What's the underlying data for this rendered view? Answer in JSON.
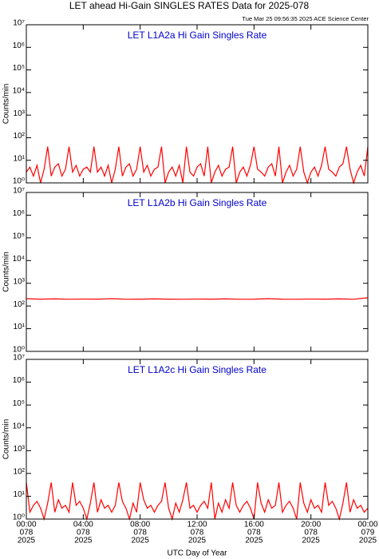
{
  "title": "LET ahead Hi-Gain SINGLES RATES Data for 2025-078",
  "subtitle": "Tue Mar 25 09:56:35 2025 ACE Science Center",
  "chart_data": [
    {
      "type": "line",
      "title": "LET L1A2a Hi Gain Singles Rate",
      "y_label": "Counts/min",
      "log_y": true,
      "color": "#ff0000",
      "xlim": [
        0,
        24
      ],
      "ylim": [
        1,
        10000000
      ],
      "yticks": [
        {
          "value": 1,
          "label": "10⁰"
        },
        {
          "value": 10,
          "label": "10¹"
        },
        {
          "value": 100,
          "label": "10²"
        },
        {
          "value": 1000,
          "label": "10³"
        },
        {
          "value": 10000,
          "label": "10⁴"
        },
        {
          "value": 100000,
          "label": "10⁵"
        },
        {
          "value": 1000000,
          "label": "10⁶"
        },
        {
          "value": 10000000,
          "label": "10⁷"
        }
      ],
      "x": [
        0,
        0.25,
        0.5,
        0.75,
        1,
        1.25,
        1.5,
        1.75,
        2,
        2.25,
        2.5,
        2.75,
        3,
        3.25,
        3.5,
        3.75,
        4,
        4.25,
        4.5,
        4.75,
        5,
        5.25,
        5.5,
        5.75,
        6,
        6.25,
        6.5,
        6.75,
        7,
        7.25,
        7.5,
        7.75,
        8,
        8.25,
        8.5,
        8.75,
        9,
        9.25,
        9.5,
        9.75,
        10,
        10.25,
        10.5,
        10.75,
        11,
        11.25,
        11.5,
        11.75,
        12,
        12.25,
        12.5,
        12.75,
        13,
        13.25,
        13.5,
        13.75,
        14,
        14.25,
        14.5,
        14.75,
        15,
        15.25,
        15.5,
        15.75,
        16,
        16.25,
        16.5,
        16.75,
        17,
        17.25,
        17.5,
        17.75,
        18,
        18.25,
        18.5,
        18.75,
        19,
        19.25,
        19.5,
        19.75,
        20,
        20.25,
        20.5,
        20.75,
        21,
        21.25,
        21.5,
        21.75,
        22,
        22.25,
        22.5,
        22.75,
        23,
        23.25,
        23.5,
        23.75,
        24
      ],
      "values": [
        3,
        5,
        2,
        6,
        1,
        4,
        40,
        2,
        5,
        7,
        2,
        4,
        40,
        3,
        6,
        2,
        4,
        5,
        3,
        40,
        3,
        5,
        2,
        6,
        1,
        4,
        40,
        2,
        5,
        7,
        2,
        4,
        40,
        3,
        6,
        2,
        4,
        5,
        40,
        1,
        3,
        5,
        2,
        6,
        1,
        40,
        3,
        2,
        5,
        7,
        2,
        40,
        1,
        3,
        6,
        2,
        4,
        5,
        40,
        1,
        3,
        5,
        2,
        6,
        40,
        4,
        3,
        2,
        5,
        7,
        2,
        40,
        1,
        3,
        6,
        2,
        4,
        40,
        3,
        1,
        3,
        5,
        2,
        6,
        40,
        4,
        3,
        2,
        5,
        7,
        40,
        4,
        1,
        3,
        6,
        2,
        40
      ]
    },
    {
      "type": "line",
      "title": "LET L1A2b Hi Gain Singles Rate",
      "y_label": "Counts/min",
      "log_y": true,
      "color": "#ff0000",
      "xlim": [
        0,
        24
      ],
      "ylim": [
        1,
        10000000
      ],
      "yticks": [
        {
          "value": 1,
          "label": "10⁰"
        },
        {
          "value": 10,
          "label": "10¹"
        },
        {
          "value": 100,
          "label": "10²"
        },
        {
          "value": 1000,
          "label": "10³"
        },
        {
          "value": 10000,
          "label": "10⁴"
        },
        {
          "value": 100000,
          "label": "10⁵"
        },
        {
          "value": 1000000,
          "label": "10⁶"
        },
        {
          "value": 10000000,
          "label": "10⁷"
        }
      ],
      "x": [
        0,
        1,
        2,
        3,
        4,
        5,
        6,
        7,
        8,
        9,
        10,
        11,
        12,
        13,
        14,
        15,
        16,
        17,
        18,
        19,
        20,
        21,
        22,
        23,
        24
      ],
      "values": [
        210,
        200,
        205,
        198,
        202,
        200,
        210,
        198,
        200,
        205,
        200,
        198,
        202,
        200,
        205,
        198,
        200,
        210,
        200,
        198,
        202,
        200,
        205,
        198,
        230
      ]
    },
    {
      "type": "line",
      "title": "LET L1A2c Hi Gain Singles Rate",
      "y_label": "Counts/min",
      "x_label": "UTC Day of Year",
      "log_y": true,
      "color": "#ff0000",
      "xlim": [
        0,
        24
      ],
      "ylim": [
        1,
        10000000
      ],
      "yticks": [
        {
          "value": 1,
          "label": "10⁰"
        },
        {
          "value": 10,
          "label": "10¹"
        },
        {
          "value": 100,
          "label": "10²"
        },
        {
          "value": 1000,
          "label": "10³"
        },
        {
          "value": 10000,
          "label": "10⁴"
        },
        {
          "value": 100000,
          "label": "10⁵"
        },
        {
          "value": 1000000,
          "label": "10⁶"
        },
        {
          "value": 10000000,
          "label": "10⁷"
        }
      ],
      "xticks": [
        {
          "value": 0,
          "label": [
            "00:00",
            "078",
            "2025"
          ]
        },
        {
          "value": 4,
          "label": [
            "04:00",
            "078",
            "2025"
          ]
        },
        {
          "value": 8,
          "label": [
            "08:00",
            "078",
            "2025"
          ]
        },
        {
          "value": 12,
          "label": [
            "12:00",
            "078",
            "2025"
          ]
        },
        {
          "value": 16,
          "label": [
            "16:00",
            "078",
            "2025"
          ]
        },
        {
          "value": 20,
          "label": [
            "20:00",
            "078",
            "2025"
          ]
        },
        {
          "value": 24,
          "label": [
            "00:00",
            "079",
            "2025"
          ]
        }
      ],
      "x": [
        0,
        0.25,
        0.5,
        0.75,
        1,
        1.25,
        1.5,
        1.75,
        2,
        2.25,
        2.5,
        2.75,
        3,
        3.25,
        3.5,
        3.75,
        4,
        4.25,
        4.5,
        4.75,
        5,
        5.25,
        5.5,
        5.75,
        6,
        6.25,
        6.5,
        6.75,
        7,
        7.25,
        7.5,
        7.75,
        8,
        8.25,
        8.5,
        8.75,
        9,
        9.25,
        9.5,
        9.75,
        10,
        10.25,
        10.5,
        10.75,
        11,
        11.25,
        11.5,
        11.75,
        12,
        12.25,
        12.5,
        12.75,
        13,
        13.25,
        13.5,
        13.75,
        14,
        14.25,
        14.5,
        14.75,
        15,
        15.25,
        15.5,
        15.75,
        16,
        16.25,
        16.5,
        16.75,
        17,
        17.25,
        17.5,
        17.75,
        18,
        18.25,
        18.5,
        18.75,
        19,
        19.25,
        19.5,
        19.75,
        20,
        20.25,
        20.5,
        20.75,
        21,
        21.25,
        21.5,
        21.75,
        22,
        22.25,
        22.5,
        22.75,
        23,
        23.25,
        23.5,
        23.75,
        24
      ],
      "values": [
        40,
        2,
        4,
        6,
        3,
        1,
        5,
        40,
        2,
        7,
        3,
        4,
        2,
        40,
        4,
        6,
        3,
        1,
        5,
        40,
        2,
        7,
        3,
        4,
        2,
        4,
        40,
        6,
        3,
        1,
        5,
        2,
        40,
        7,
        3,
        4,
        2,
        4,
        6,
        40,
        3,
        1,
        5,
        2,
        7,
        40,
        3,
        4,
        2,
        4,
        6,
        3,
        40,
        1,
        5,
        2,
        7,
        3,
        40,
        4,
        2,
        4,
        6,
        3,
        1,
        40,
        5,
        2,
        7,
        3,
        4,
        40,
        2,
        4,
        6,
        3,
        1,
        40,
        5,
        2,
        7,
        3,
        4,
        2,
        40,
        4,
        6,
        3,
        1,
        5,
        40,
        2,
        7,
        3,
        4,
        2,
        3
      ]
    }
  ]
}
